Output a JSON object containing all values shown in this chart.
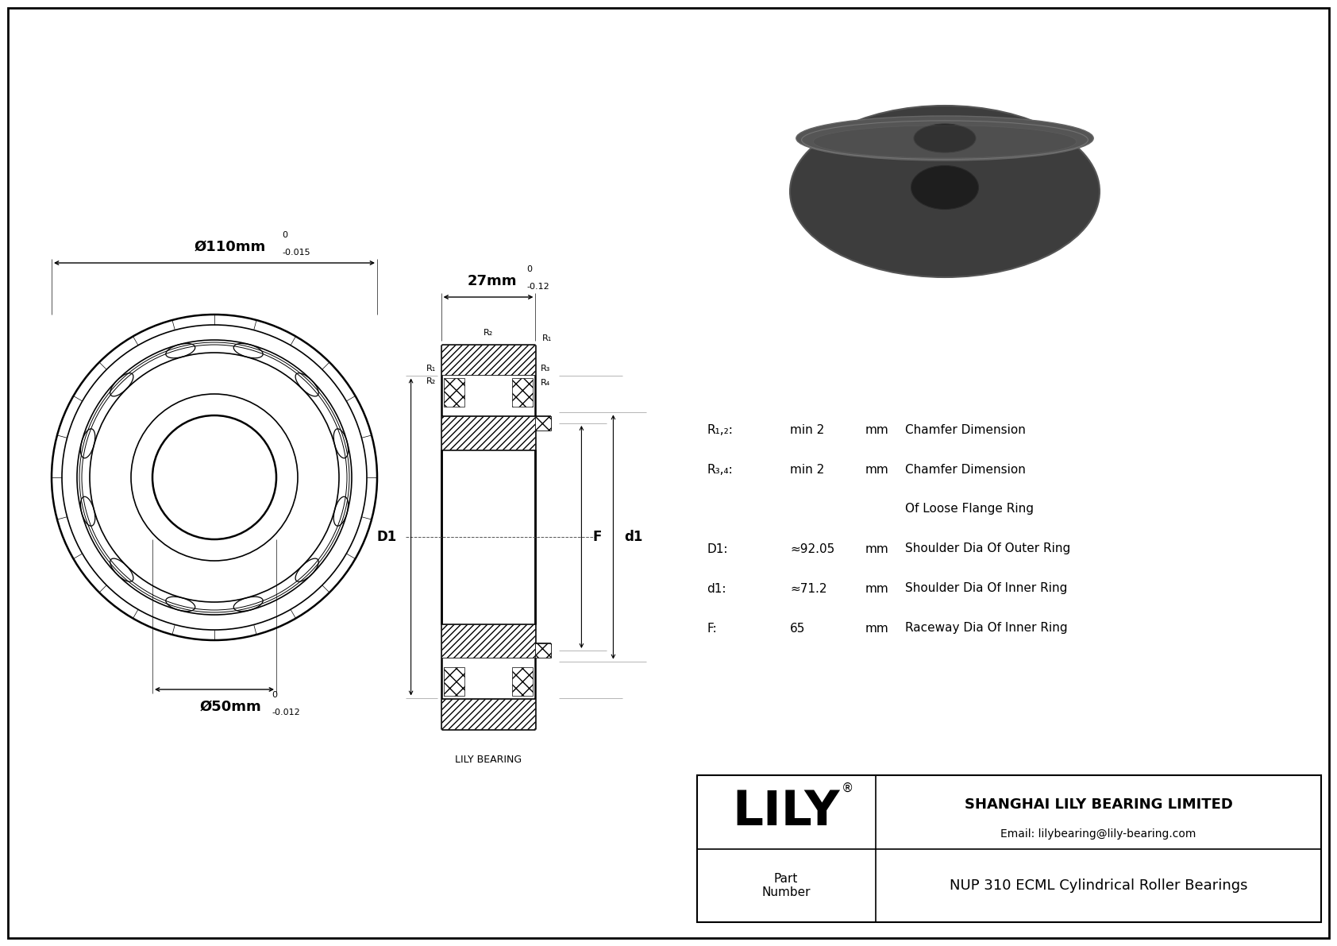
{
  "bg_color": "#ffffff",
  "border_color": "#000000",
  "title": "NUP 310 ECML Cylindrical Roller Bearings",
  "company": "SHANGHAI LILY BEARING LIMITED",
  "email": "Email: lilybearing@lily-bearing.com",
  "lily_text": "LILY",
  "part_label": "Part\nNumber",
  "lily_bearing_label": "LILY BEARING",
  "dim_outer": "Ø110mm",
  "dim_outer_tol_top": "0",
  "dim_outer_tol_bot": "-0.015",
  "dim_inner": "Ø50mm",
  "dim_inner_tol_top": "0",
  "dim_inner_tol_bot": "-0.012",
  "dim_width": "27mm",
  "dim_width_tol_top": "0",
  "dim_width_tol_bot": "-0.12",
  "params": [
    {
      "label": "R₁,₂:",
      "value": "min 2",
      "unit": "mm",
      "desc": "Chamfer Dimension"
    },
    {
      "label": "R₃,₄:",
      "value": "min 2",
      "unit": "mm",
      "desc": "Chamfer Dimension"
    },
    {
      "label": "",
      "value": "",
      "unit": "",
      "desc": "Of Loose Flange Ring"
    },
    {
      "label": "D1:",
      "value": "≈92.05",
      "unit": "mm",
      "desc": "Shoulder Dia Of Outer Ring"
    },
    {
      "label": "d1:",
      "value": "≈71.2",
      "unit": "mm",
      "desc": "Shoulder Dia Of Inner Ring"
    },
    {
      "label": "F:",
      "value": "65",
      "unit": "mm",
      "desc": "Raceway Dia Of Inner Ring"
    }
  ]
}
